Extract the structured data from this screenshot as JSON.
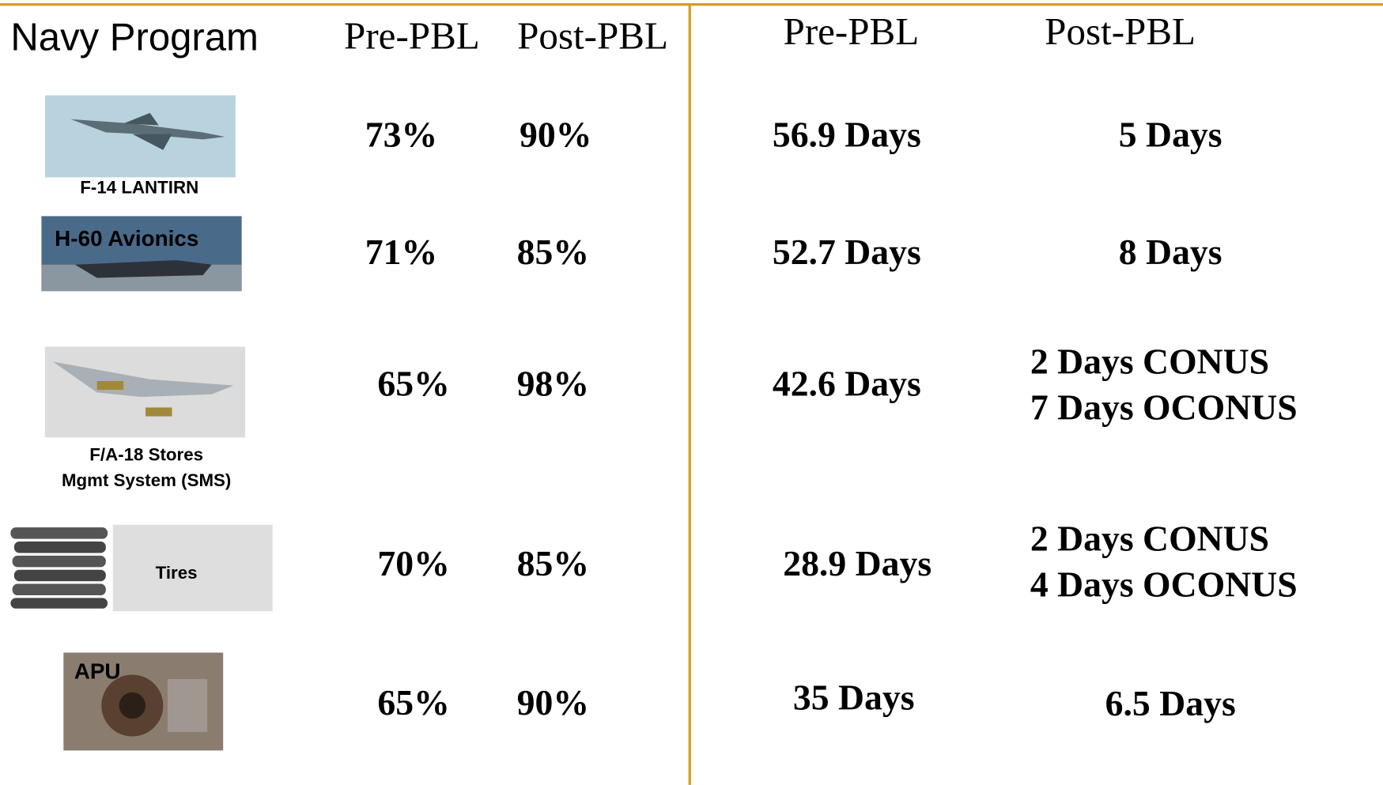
{
  "header": {
    "program": "Navy Program",
    "availability_pre": "Pre-PBL",
    "availability_post": "Post-PBL",
    "days_pre": "Pre-PBL",
    "days_post": "Post-PBL"
  },
  "rows": [
    {
      "program": [
        "F-14 LANTIRN"
      ],
      "availability_pre": "73%",
      "availability_post": "90%",
      "days_pre": "56.9 Days",
      "days_post": [
        "5 Days"
      ]
    },
    {
      "program": [
        "H-60 Avionics"
      ],
      "availability_pre": "71%",
      "availability_post": "85%",
      "days_pre": "52.7 Days",
      "days_post": [
        "8 Days"
      ]
    },
    {
      "program": [
        "F/A-18 Stores",
        "Mgmt System (SMS)"
      ],
      "availability_pre": "65%",
      "availability_post": "98%",
      "days_pre": "42.6 Days",
      "days_post": [
        "2 Days CONUS",
        "7 Days OCONUS"
      ]
    },
    {
      "program": [
        "Tires"
      ],
      "availability_pre": "70%",
      "availability_post": "85%",
      "days_pre": "28.9 Days",
      "days_post": [
        "2 Days CONUS",
        "4 Days OCONUS"
      ]
    },
    {
      "program": [
        "APU"
      ],
      "availability_pre": "65%",
      "availability_post": "90%",
      "days_pre": "35 Days",
      "days_post": [
        "6.5 Days"
      ]
    }
  ]
}
